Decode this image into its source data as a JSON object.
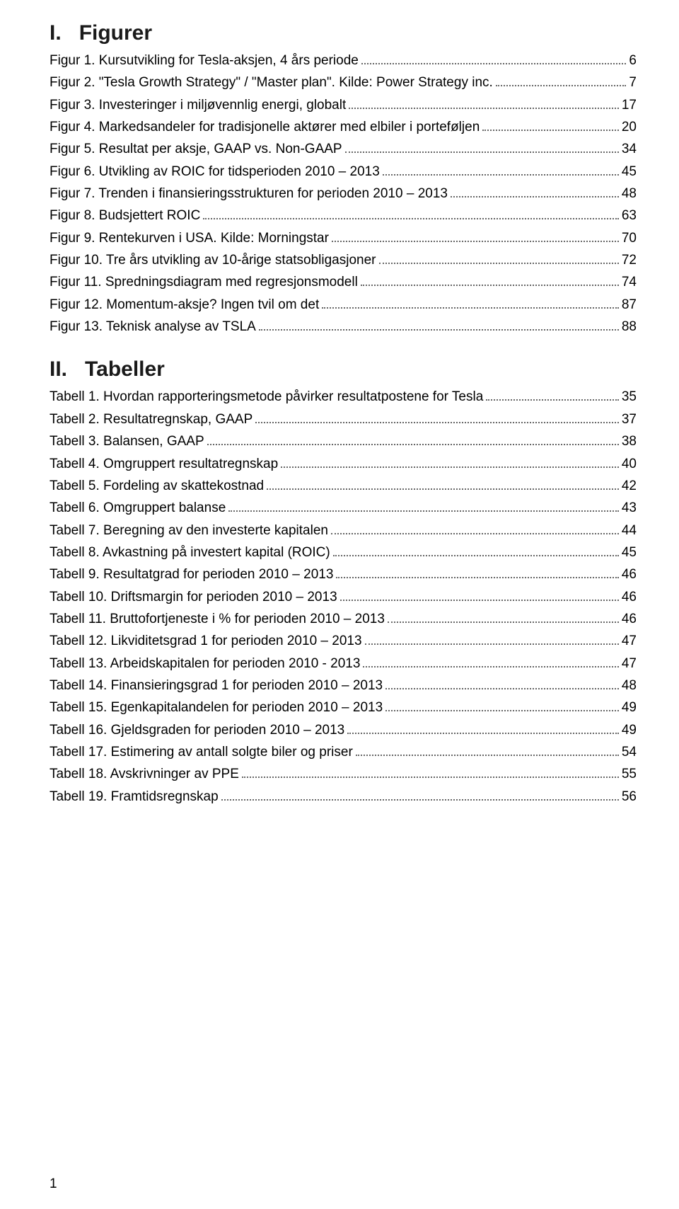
{
  "sections": [
    {
      "roman": "I.",
      "title": "Figurer",
      "entries": [
        {
          "label": "Figur 1. Kursutvikling for Tesla-aksjen, 4 års periode",
          "page": "6"
        },
        {
          "label": "Figur 2. \"Tesla Growth Strategy\" / \"Master plan\". Kilde: Power Strategy inc.",
          "page": "7"
        },
        {
          "label": "Figur 3. Investeringer i miljøvennlig energi, globalt",
          "page": "17"
        },
        {
          "label": "Figur 4. Markedsandeler for tradisjonelle aktører med elbiler i porteføljen",
          "page": "20"
        },
        {
          "label": "Figur 5. Resultat per aksje, GAAP vs. Non-GAAP",
          "page": "34"
        },
        {
          "label": "Figur 6. Utvikling av ROIC for tidsperioden 2010 – 2013",
          "page": "45"
        },
        {
          "label": "Figur 7. Trenden i finansieringsstrukturen for perioden 2010 – 2013",
          "page": "48"
        },
        {
          "label": "Figur 8. Budsjettert ROIC",
          "page": "63"
        },
        {
          "label": "Figur 9. Rentekurven i USA. Kilde: Morningstar",
          "page": "70"
        },
        {
          "label": "Figur 10. Tre års utvikling av 10-årige statsobligasjoner",
          "page": "72"
        },
        {
          "label": "Figur 11. Spredningsdiagram med regresjonsmodell",
          "page": "74"
        },
        {
          "label": "Figur 12. Momentum-aksje? Ingen tvil om det",
          "page": "87"
        },
        {
          "label": "Figur 13. Teknisk analyse av TSLA",
          "page": "88"
        }
      ]
    },
    {
      "roman": "II.",
      "title": "Tabeller",
      "entries": [
        {
          "label": "Tabell 1. Hvordan rapporteringsmetode påvirker resultatpostene for Tesla",
          "page": "35"
        },
        {
          "label": "Tabell 2. Resultatregnskap, GAAP",
          "page": "37"
        },
        {
          "label": "Tabell 3. Balansen, GAAP",
          "page": "38"
        },
        {
          "label": "Tabell 4. Omgruppert resultatregnskap",
          "page": "40"
        },
        {
          "label": "Tabell 5. Fordeling av skattekostnad",
          "page": "42"
        },
        {
          "label": "Tabell 6. Omgruppert balanse",
          "page": "43"
        },
        {
          "label": "Tabell 7. Beregning av den investerte kapitalen",
          "page": "44"
        },
        {
          "label": "Tabell 8. Avkastning på investert kapital (ROIC)",
          "page": "45"
        },
        {
          "label": "Tabell 9. Resultatgrad for perioden 2010 – 2013",
          "page": "46"
        },
        {
          "label": "Tabell 10. Driftsmargin for perioden 2010 – 2013",
          "page": "46"
        },
        {
          "label": "Tabell 11. Bruttofortjeneste i % for perioden 2010 – 2013",
          "page": "46"
        },
        {
          "label": "Tabell 12. Likviditetsgrad 1 for perioden 2010 – 2013",
          "page": "47"
        },
        {
          "label": "Tabell 13. Arbeidskapitalen for perioden 2010 - 2013",
          "page": "47"
        },
        {
          "label": "Tabell 14. Finansieringsgrad 1 for perioden 2010 – 2013",
          "page": "48"
        },
        {
          "label": "Tabell 15. Egenkapitalandelen for perioden 2010 – 2013",
          "page": "49"
        },
        {
          "label": "Tabell 16. Gjeldsgraden for perioden 2010 – 2013",
          "page": "49"
        },
        {
          "label": "Tabell 17. Estimering av antall solgte biler og priser",
          "page": "54"
        },
        {
          "label": "Tabell 18. Avskrivninger av PPE",
          "page": "55"
        },
        {
          "label": "Tabell 19. Framtidsregnskap",
          "page": "56"
        }
      ]
    }
  ],
  "pageNumber": "1"
}
